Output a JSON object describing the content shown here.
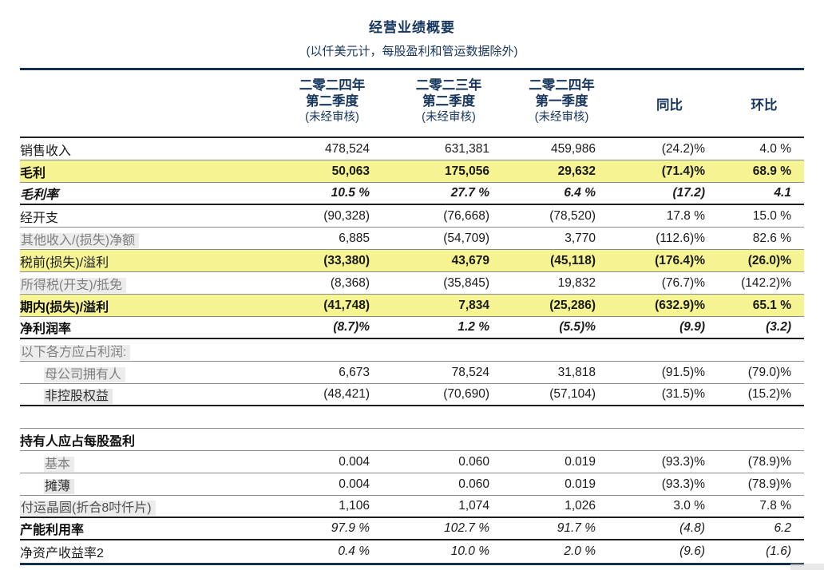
{
  "doc": {
    "title": "经营业绩概要",
    "subtitle": "(以仟美元计，每股盈利和管运数据除外)"
  },
  "colors": {
    "accent_navy": "#17365D",
    "rule_navy": "#14304F",
    "highlight_yellow": "#F6F492",
    "muted_gray": "#7F7F7F"
  },
  "table": {
    "columns": [
      {
        "lines": [
          "二零二四年",
          "第二季度",
          "(未经审核)"
        ]
      },
      {
        "lines": [
          "二零二三年",
          "第二季度",
          "(未经审核)"
        ]
      },
      {
        "lines": [
          "二零二四年",
          "第一季度",
          "(未经审核)"
        ]
      },
      {
        "lines": [
          "同比"
        ]
      },
      {
        "lines": [
          "环比"
        ]
      }
    ],
    "rows": [
      {
        "label": "销售收入",
        "values": [
          "478,524",
          "631,381",
          "459,986",
          "(24.2)%",
          "4.0 %"
        ],
        "highlight": false,
        "value_style": "normal",
        "label_style": "black",
        "border": "thin"
      },
      {
        "label": "毛利",
        "values": [
          "50,063",
          "175,056",
          "29,632",
          "(71.4)%",
          "68.9 %"
        ],
        "highlight": true,
        "value_style": "bold",
        "label_style": "black-bold",
        "border": "thin"
      },
      {
        "label": "毛利率",
        "values": [
          "10.5 %",
          "27.7 %",
          "6.4 %",
          "(17.2)",
          "4.1"
        ],
        "highlight": false,
        "value_style": "bold-italic",
        "label_style": "black-bold-italic",
        "border": "thick"
      },
      {
        "label": "经开支",
        "values": [
          "(90,328)",
          "(76,668)",
          "(78,520)",
          "17.8 %",
          "15.0 %"
        ],
        "highlight": false,
        "value_style": "normal",
        "label_style": "black-large",
        "border": "thin"
      },
      {
        "label": "其他收入/(损失)净额",
        "values": [
          "6,885",
          "(54,709)",
          "3,770",
          "(112.6)%",
          "82.6 %"
        ],
        "highlight": false,
        "value_style": "normal",
        "label_style": "gray-boxed",
        "border": "thin"
      },
      {
        "label": "税前(损失)/溢利",
        "values": [
          "(33,380)",
          "43,679",
          "(45,118)",
          "(176.4)%",
          "(26.0)%"
        ],
        "highlight": true,
        "value_style": "bold",
        "label_style": "black",
        "border": "thin"
      },
      {
        "label": "所得税(开支)/抵免",
        "values": [
          "(8,368)",
          "(35,845)",
          "19,832",
          "(76.7)%",
          "(142.2)%"
        ],
        "highlight": false,
        "value_style": "normal",
        "label_style": "gray-boxed",
        "border": "thin"
      },
      {
        "label": "期内(损失)/溢利",
        "values": [
          "(41,748)",
          "7,834",
          "(25,286)",
          "(632.9)%",
          "65.1 %"
        ],
        "highlight": true,
        "value_style": "bold",
        "label_style": "black-bold-large",
        "border": "thin"
      },
      {
        "label": "净利润率",
        "values": [
          "(8.7)%",
          "1.2 %",
          "(5.5)%",
          "(9.9)",
          "(3.2)"
        ],
        "highlight": false,
        "value_style": "bold-italic",
        "label_style": "black-bold-large",
        "border": "thick"
      },
      {
        "label": "以下各方应占利润:",
        "values": [
          "",
          "",
          "",
          "",
          ""
        ],
        "highlight": false,
        "value_style": "normal",
        "label_style": "gray-boxed",
        "border": "thin"
      },
      {
        "label": "母公司拥有人",
        "values": [
          "6,673",
          "78,524",
          "31,818",
          "(91.5)%",
          "(79.0)%"
        ],
        "highlight": false,
        "value_style": "normal",
        "label_style": "gray-boxed-indent",
        "border": "thin"
      },
      {
        "label": "非控股权益",
        "values": [
          "(48,421)",
          "(70,690)",
          "(57,104)",
          "(31.5)%",
          "(15.2)%"
        ],
        "highlight": false,
        "value_style": "normal",
        "label_style": "dark-boxed-indent-large",
        "border": "thick"
      },
      {
        "label": "",
        "values": [
          "",
          "",
          "",
          "",
          ""
        ],
        "highlight": false,
        "value_style": "normal",
        "label_style": "spacer",
        "border": "thin"
      },
      {
        "label": "持有人应占每股盈利",
        "values": [
          "",
          "",
          "",
          "",
          ""
        ],
        "highlight": false,
        "value_style": "normal",
        "label_style": "black-bold-large",
        "border": "thin"
      },
      {
        "label": "基本",
        "values": [
          "0.004",
          "0.060",
          "0.019",
          "(93.3)%",
          "(78.9)%"
        ],
        "highlight": false,
        "value_style": "normal",
        "label_style": "gray-boxed-indent",
        "border": "thin"
      },
      {
        "label": "摊薄",
        "values": [
          "0.004",
          "0.060",
          "0.019",
          "(93.3)%",
          "(78.9)%"
        ],
        "highlight": false,
        "value_style": "normal",
        "label_style": "dark-boxed-indent-large",
        "border": "thin"
      },
      {
        "label": "付运晶圆(折合8吋仟片)",
        "values": [
          "1,106",
          "1,074",
          "1,026",
          "3.0 %",
          "7.8 %"
        ],
        "highlight": false,
        "value_style": "normal",
        "label_style": "dark-boxed",
        "border": "thick"
      },
      {
        "label": "产能利用率",
        "values": [
          "97.9 %",
          "102.7 %",
          "91.7 %",
          "(4.8)",
          "6.2"
        ],
        "highlight": false,
        "value_style": "italic",
        "label_style": "black-bold-large",
        "border": "thick"
      },
      {
        "label": "净资产收益率2",
        "values": [
          "0.4 %",
          "10.0 %",
          "2.0 %",
          "(9.6)",
          "(1.6)"
        ],
        "highlight": false,
        "value_style": "italic",
        "label_style": "dark-large",
        "border": "none"
      }
    ]
  }
}
